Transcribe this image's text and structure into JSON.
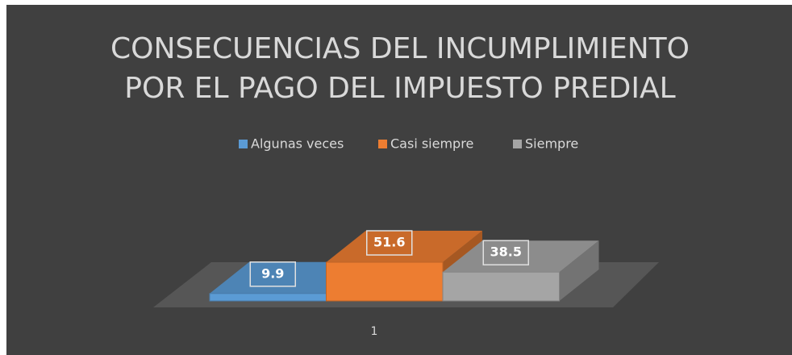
{
  "chart_data": {
    "type": "bar3d",
    "title": [
      "CONSECUENCIAS DEL INCUMPLIMIENTO",
      "POR EL PAGO DEL IMPUESTO PREDIAL"
    ],
    "categories": [
      "1"
    ],
    "series": [
      {
        "name": "Algunas veces",
        "color": "#5b9bd5",
        "values": [
          9.9
        ]
      },
      {
        "name": "Casi siempre",
        "color": "#ed7d31",
        "values": [
          51.6
        ]
      },
      {
        "name": "Siempre",
        "color": "#a5a5a5",
        "values": [
          38.5
        ]
      }
    ],
    "legend": "top"
  }
}
